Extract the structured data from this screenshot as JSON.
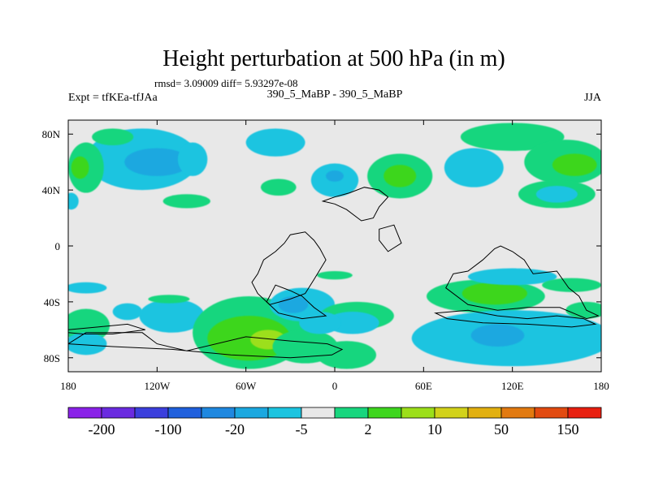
{
  "chart_data": {
    "type": "heatmap",
    "title": "Height perturbation at 500 hPa (in m)",
    "stats_text": "rmsd= 3.09009 diff= 5.93297e-08",
    "left_label": "Expt = tfKEa-tfJAa",
    "center_label": "390_5_MaBP - 390_5_MaBP",
    "right_label": "JJA",
    "x_range": [
      -180,
      180
    ],
    "y_range": [
      -90,
      90
    ],
    "x_ticks": [
      {
        "value": -180,
        "label": "180"
      },
      {
        "value": -120,
        "label": "120W"
      },
      {
        "value": -60,
        "label": "60W"
      },
      {
        "value": 0,
        "label": "0"
      },
      {
        "value": 60,
        "label": "60E"
      },
      {
        "value": 120,
        "label": "120E"
      },
      {
        "value": 180,
        "label": "180"
      }
    ],
    "y_ticks": [
      {
        "value": 80,
        "label": "80N"
      },
      {
        "value": 40,
        "label": "40N"
      },
      {
        "value": 0,
        "label": "0"
      },
      {
        "value": -40,
        "label": "40S"
      },
      {
        "value": -80,
        "label": "80S"
      }
    ],
    "colorbar_colors": [
      "#8a22e8",
      "#6a2be0",
      "#3b3fdd",
      "#2060dd",
      "#1f88e0",
      "#1ba8e0",
      "#1cc4e0",
      "#e8e8e8",
      "#18d67e",
      "#3ed61e",
      "#9cdf1a",
      "#d2d21a",
      "#e2b010",
      "#e27a10",
      "#e24a10",
      "#e82010"
    ],
    "colorbar_labels": [
      "-200",
      "-100",
      "-20",
      "-5",
      "2",
      "10",
      "50",
      "150"
    ],
    "regions": [
      {
        "level": -1,
        "lon": -130,
        "lat": 62,
        "rlon": 38,
        "rlat": 22
      },
      {
        "level": -2,
        "lon": -120,
        "lat": 60,
        "rlon": 22,
        "rlat": 10
      },
      {
        "level": -1,
        "lon": -96,
        "lat": 62,
        "rlon": 10,
        "rlat": 12
      },
      {
        "level": -1,
        "lon": -40,
        "lat": 74,
        "rlon": 20,
        "rlat": 10
      },
      {
        "level": 1,
        "lon": -150,
        "lat": 78,
        "rlon": 14,
        "rlat": 6
      },
      {
        "level": 1,
        "lon": -100,
        "lat": 32,
        "rlon": 16,
        "rlat": 5
      },
      {
        "level": 1,
        "lon": -168,
        "lat": 56,
        "rlon": 12,
        "rlat": 18
      },
      {
        "level": 2,
        "lon": -172,
        "lat": 56,
        "rlon": 6,
        "rlat": 8
      },
      {
        "level": -1,
        "lon": -178,
        "lat": 32,
        "rlon": 5,
        "rlat": 6
      },
      {
        "level": 1,
        "lon": -38,
        "lat": 42,
        "rlon": 12,
        "rlat": 6
      },
      {
        "level": -1,
        "lon": 0,
        "lat": 47,
        "rlon": 16,
        "rlat": 12
      },
      {
        "level": -2,
        "lon": 0,
        "lat": 50,
        "rlon": 6,
        "rlat": 4
      },
      {
        "level": 1,
        "lon": 44,
        "lat": 50,
        "rlon": 22,
        "rlat": 16
      },
      {
        "level": 2,
        "lon": 44,
        "lat": 50,
        "rlon": 11,
        "rlat": 8
      },
      {
        "level": -1,
        "lon": 94,
        "lat": 56,
        "rlon": 20,
        "rlat": 14
      },
      {
        "level": 1,
        "lon": 120,
        "lat": 78,
        "rlon": 35,
        "rlat": 10
      },
      {
        "level": 1,
        "lon": 156,
        "lat": 60,
        "rlon": 28,
        "rlat": 16
      },
      {
        "level": 2,
        "lon": 162,
        "lat": 58,
        "rlon": 15,
        "rlat": 8
      },
      {
        "level": 1,
        "lon": 150,
        "lat": 37,
        "rlon": 26,
        "rlat": 10
      },
      {
        "level": -1,
        "lon": 150,
        "lat": 37,
        "rlon": 14,
        "rlat": 6
      },
      {
        "level": 1,
        "lon": 0,
        "lat": -21,
        "rlon": 12,
        "rlat": 3
      },
      {
        "level": -1,
        "lon": -168,
        "lat": -30,
        "rlon": 14,
        "rlat": 4
      },
      {
        "level": 1,
        "lon": -168,
        "lat": -57,
        "rlon": 16,
        "rlat": 12
      },
      {
        "level": -1,
        "lon": -168,
        "lat": -70,
        "rlon": 14,
        "rlat": 8
      },
      {
        "level": -1,
        "lon": -110,
        "lat": -50,
        "rlon": 22,
        "rlat": 12
      },
      {
        "level": -1,
        "lon": -140,
        "lat": -47,
        "rlon": 10,
        "rlat": 6
      },
      {
        "level": 1,
        "lon": -58,
        "lat": -62,
        "rlon": 38,
        "rlat": 26
      },
      {
        "level": 2,
        "lon": -58,
        "lat": -66,
        "rlon": 28,
        "rlat": 16
      },
      {
        "level": 3,
        "lon": -45,
        "lat": -67,
        "rlon": 12,
        "rlat": 7
      },
      {
        "level": 1,
        "lon": -20,
        "lat": -72,
        "rlon": 22,
        "rlat": 12
      },
      {
        "level": -1,
        "lon": -22,
        "lat": -42,
        "rlon": 22,
        "rlat": 12
      },
      {
        "level": -2,
        "lon": -28,
        "lat": -42,
        "rlon": 10,
        "rlat": 6
      },
      {
        "level": 1,
        "lon": 15,
        "lat": -50,
        "rlon": 25,
        "rlat": 10
      },
      {
        "level": -1,
        "lon": 12,
        "lat": -55,
        "rlon": 18,
        "rlat": 8
      },
      {
        "level": -1,
        "lon": -10,
        "lat": -55,
        "rlon": 14,
        "rlat": 8
      },
      {
        "level": 1,
        "lon": 8,
        "lat": -78,
        "rlon": 20,
        "rlat": 10
      },
      {
        "level": 1,
        "lon": 102,
        "lat": -36,
        "rlon": 40,
        "rlat": 12
      },
      {
        "level": 2,
        "lon": 108,
        "lat": -34,
        "rlon": 22,
        "rlat": 8
      },
      {
        "level": -1,
        "lon": 120,
        "lat": -22,
        "rlon": 30,
        "rlat": 6
      },
      {
        "level": -1,
        "lon": 120,
        "lat": -66,
        "rlon": 68,
        "rlat": 20
      },
      {
        "level": -2,
        "lon": 110,
        "lat": -64,
        "rlon": 18,
        "rlat": 8
      },
      {
        "level": 1,
        "lon": 170,
        "lat": -46,
        "rlon": 14,
        "rlat": 6
      },
      {
        "level": 1,
        "lon": 160,
        "lat": -28,
        "rlon": 20,
        "rlat": 5
      },
      {
        "level": 1,
        "lon": -112,
        "lat": -38,
        "rlon": 14,
        "rlat": 3
      }
    ],
    "outlines": [
      [
        [
          -168,
          -62
        ],
        [
          -130,
          -62
        ],
        [
          -120,
          -70
        ],
        [
          -100,
          -75
        ],
        [
          -60,
          -65
        ],
        [
          -30,
          -68
        ],
        [
          -5,
          -70
        ],
        [
          5,
          -74
        ],
        [
          -2,
          -78
        ],
        [
          -30,
          -80
        ],
        [
          -70,
          -78
        ],
        [
          -110,
          -74
        ],
        [
          -150,
          -72
        ],
        [
          -180,
          -70
        ]
      ],
      [
        [
          -180,
          -60
        ],
        [
          -160,
          -58
        ],
        [
          -140,
          -56
        ],
        [
          -128,
          -60
        ],
        [
          -150,
          -63
        ],
        [
          -170,
          -63
        ],
        [
          -180,
          -62
        ]
      ],
      [
        [
          -52,
          -20
        ],
        [
          -48,
          -10
        ],
        [
          -40,
          -4
        ],
        [
          -34,
          2
        ],
        [
          -30,
          8
        ],
        [
          -20,
          10
        ],
        [
          -14,
          4
        ],
        [
          -10,
          -2
        ],
        [
          -6,
          -10
        ],
        [
          -14,
          -24
        ],
        [
          -20,
          -34
        ],
        [
          -30,
          -38
        ],
        [
          -44,
          -42
        ],
        [
          -52,
          -34
        ],
        [
          -56,
          -26
        ],
        [
          -52,
          -20
        ]
      ],
      [
        [
          -40,
          -28
        ],
        [
          -30,
          -32
        ],
        [
          -22,
          -36
        ],
        [
          -14,
          -44
        ],
        [
          -6,
          -50
        ],
        [
          -22,
          -52
        ],
        [
          -38,
          -48
        ],
        [
          -46,
          -40
        ],
        [
          -40,
          -28
        ]
      ],
      [
        [
          -8,
          32
        ],
        [
          0,
          35
        ],
        [
          10,
          38
        ],
        [
          20,
          42
        ],
        [
          30,
          40
        ],
        [
          36,
          35
        ],
        [
          30,
          28
        ],
        [
          26,
          20
        ],
        [
          18,
          18
        ],
        [
          8,
          26
        ],
        [
          0,
          30
        ],
        [
          -8,
          32
        ]
      ],
      [
        [
          30,
          12
        ],
        [
          40,
          15
        ],
        [
          45,
          2
        ],
        [
          36,
          -4
        ],
        [
          30,
          4
        ],
        [
          30,
          12
        ]
      ],
      [
        [
          80,
          -20
        ],
        [
          90,
          -18
        ],
        [
          100,
          -10
        ],
        [
          108,
          -2
        ],
        [
          112,
          0
        ],
        [
          120,
          -4
        ],
        [
          128,
          -10
        ],
        [
          134,
          -20
        ],
        [
          150,
          -18
        ],
        [
          158,
          -30
        ],
        [
          165,
          -36
        ],
        [
          170,
          -46
        ],
        [
          178,
          -50
        ],
        [
          170,
          -52
        ],
        [
          152,
          -44
        ],
        [
          130,
          -44
        ],
        [
          110,
          -46
        ],
        [
          90,
          -42
        ],
        [
          75,
          -30
        ],
        [
          80,
          -20
        ]
      ],
      [
        [
          68,
          -48
        ],
        [
          90,
          -46
        ],
        [
          110,
          -50
        ],
        [
          130,
          -52
        ],
        [
          150,
          -50
        ],
        [
          168,
          -52
        ],
        [
          176,
          -56
        ],
        [
          160,
          -58
        ],
        [
          130,
          -56
        ],
        [
          100,
          -55
        ],
        [
          76,
          -52
        ],
        [
          68,
          -48
        ]
      ]
    ]
  }
}
